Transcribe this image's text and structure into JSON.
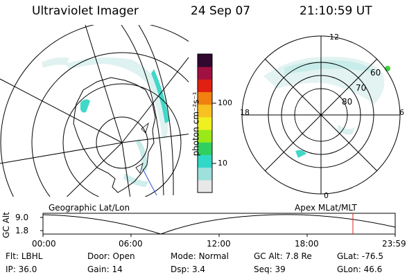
{
  "header": {
    "instrument": "Ultraviolet Imager",
    "date": "24 Sep 07",
    "time": "21:10:59 UT"
  },
  "colorbar": {
    "unit_label": "photon cm⁻²s⁻¹",
    "ticks": [
      {
        "label": "100",
        "value": 100
      },
      {
        "label": "10",
        "value": 10
      }
    ],
    "colors": [
      "#e8e8e8",
      "#9ee0dc",
      "#30d8c8",
      "#30d060",
      "#9ae818",
      "#f0f020",
      "#f8c020",
      "#f08010",
      "#e02010",
      "#a01040",
      "#300830"
    ]
  },
  "geo_map": {
    "label": "Geographic Lat/Lon"
  },
  "apex_map": {
    "label": "Apex MLat/MLT",
    "mlt_labels": {
      "top": "12",
      "bottom": "0",
      "left": "18",
      "right": "6"
    },
    "lat_labels": [
      "60",
      "70",
      "80"
    ]
  },
  "altitude_plot": {
    "ylabel": "GC Alt",
    "y_ticks": [
      "9.0",
      "1.8"
    ],
    "x_ticks": [
      "00:00",
      "06:00",
      "12:00",
      "18:00",
      "23:59"
    ],
    "current_time_marker": "21:10:59",
    "marker_color": "#e02020"
  },
  "status": {
    "flt": {
      "label": "Flt:",
      "value": "LBHL"
    },
    "ip": {
      "label": "IP:",
      "value": "36.0"
    },
    "door": {
      "label": "Door:",
      "value": "Open"
    },
    "gain": {
      "label": "Gain:",
      "value": "14"
    },
    "mode": {
      "label": "Mode:",
      "value": "Normal"
    },
    "dsp": {
      "label": "Dsp:",
      "value": "3.4"
    },
    "gcalt": {
      "label": "GC Alt:",
      "value": "7.8 Re"
    },
    "seq": {
      "label": "Seq:",
      "value": "39"
    },
    "glat": {
      "label": "GLat:",
      "value": "-76.5"
    },
    "glon": {
      "label": "GLon:",
      "value": "46.6"
    }
  }
}
